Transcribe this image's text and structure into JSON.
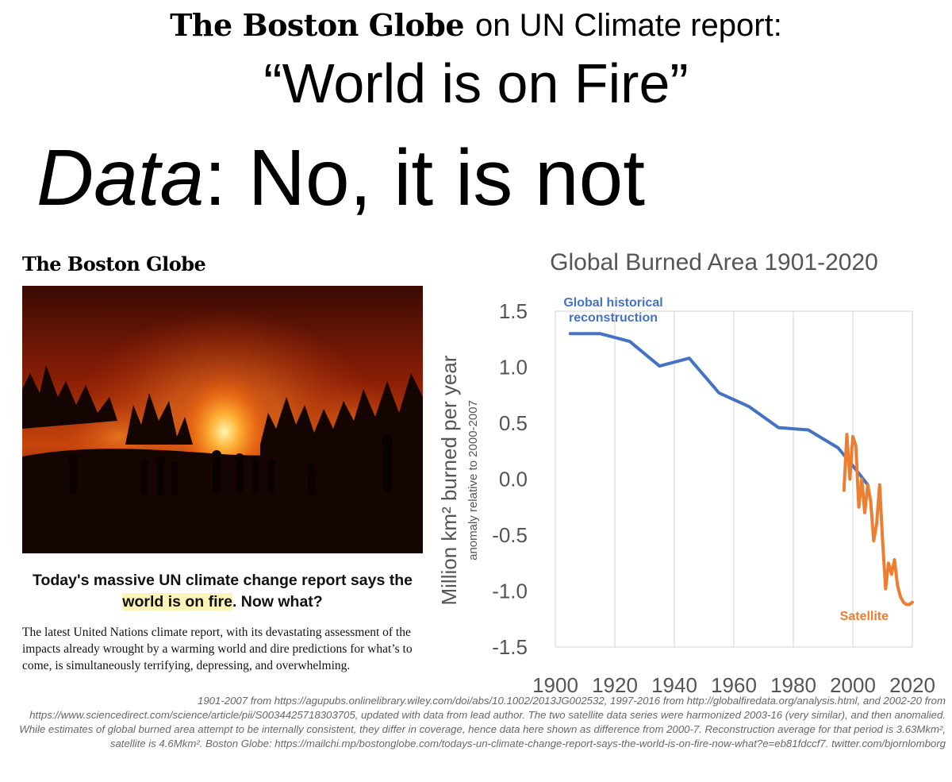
{
  "header": {
    "masthead": "The Boston Globe",
    "line1_text": "on UN Climate report:",
    "quote": "“World is on Fire”",
    "data_label": "Data",
    "data_rest": ": No, it is not"
  },
  "article": {
    "logo": "The Boston Globe",
    "photo_icon": "wildfire-photo",
    "headline_part1": "Today's massive UN climate change report says the ",
    "headline_highlight": "world is on fire",
    "headline_part2": ". Now what?",
    "body": "The latest United Nations climate report, with its devastating assessment of the impacts already wrought by a warming world and dire predictions for what’s to come, is simultaneously terrifying, depressing, and overwhelming.",
    "highlight_color": "#fbf3b8"
  },
  "chart_data": {
    "type": "line",
    "title": "Global Burned Area 1901-2020",
    "ylabel": "Million km² burned per year",
    "ylabel_sub": "anomaly relative to 2000-2007",
    "xlim": [
      1900,
      2020
    ],
    "ylim": [
      -1.5,
      1.5
    ],
    "x_ticks": [
      "1900",
      "1920",
      "1940",
      "1960",
      "1980",
      "2000",
      "2020"
    ],
    "y_ticks": [
      "1.5",
      "1.0",
      "0.5",
      "0.0",
      "-0.5",
      "-1.0",
      "-1.5"
    ],
    "grid": true,
    "series": [
      {
        "name": "Global historical reconstruction",
        "color": "#4472c4",
        "x": [
          1905,
          1915,
          1925,
          1935,
          1945,
          1955,
          1965,
          1975,
          1985,
          1995,
          2000,
          2005
        ],
        "y": [
          1.3,
          1.3,
          1.23,
          1.01,
          1.08,
          0.77,
          0.65,
          0.46,
          0.44,
          0.28,
          0.12,
          -0.05
        ]
      },
      {
        "name": "Satellite",
        "color": "#ed7d31",
        "x": [
          1997,
          1998,
          1999,
          2000,
          2001,
          2002,
          2003,
          2004,
          2005,
          2006,
          2007,
          2008,
          2009,
          2010,
          2011,
          2012,
          2013,
          2014,
          2015,
          2016,
          2017,
          2018,
          2019,
          2020
        ],
        "y": [
          -0.1,
          0.4,
          0.0,
          0.38,
          0.3,
          -0.25,
          0.0,
          -0.3,
          -0.05,
          -0.2,
          -0.55,
          -0.4,
          -0.05,
          -0.55,
          -0.98,
          -0.75,
          -0.85,
          -0.72,
          -0.95,
          -1.05,
          -1.1,
          -1.12,
          -1.12,
          -1.1
        ]
      }
    ]
  },
  "footnote": "1901-2007 from https://agupubs.onlinelibrary.wiley.com/doi/abs/10.1002/2013JG002532, 1997-2016 from http://globalfiredata.org/analysis.html, and 2002-20 from https://www.sciencedirect.com/science/article/pii/S0034425718303705, updated with data from lead author. The two satellite data series were harmonized 2003-16 (very similar), and then anomalied. While estimates of global burned area attempt to be internally consistent, they differ in coverage, hence data here shown as difference from 2000-7. Reconstruction average for that period is 3.63Mkm², satellite is 4.6Mkm². Boston Globe: https://mailchi.mp/bostonglobe.com/todays-un-climate-change-report-says-the-world-is-on-fire-now-what?e=eb81fdccf7. twitter.com/bjornlomborg"
}
